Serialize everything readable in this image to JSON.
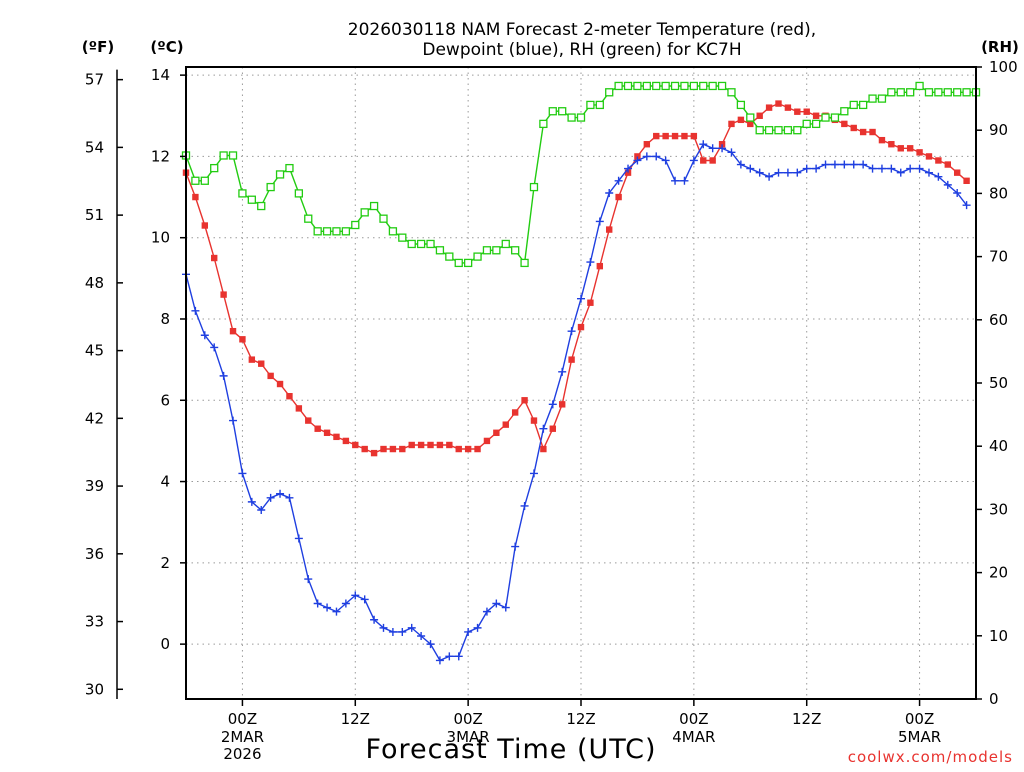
{
  "chart_data": {
    "type": "line",
    "title_lines": [
      "2026030118 NAM Forecast 2-meter Temperature (red),",
      "Dewpoint (blue), RH (green) for KC7H"
    ],
    "xlabel": "Forecast Time (UTC)",
    "watermark": "coolwx.com/models",
    "units": {
      "left_f": "(ºF)",
      "left_c": "(ºC)",
      "right": "(RH)"
    },
    "x_hours_range": [
      -6,
      78
    ],
    "x_tick_hours": [
      0,
      12,
      24,
      36,
      48,
      60,
      72
    ],
    "x_ticks": [
      {
        "label": "00Z",
        "sub": [
          "2MAR",
          "2026"
        ]
      },
      {
        "label": "12Z",
        "sub": []
      },
      {
        "label": "00Z",
        "sub": [
          "3MAR"
        ]
      },
      {
        "label": "12Z",
        "sub": []
      },
      {
        "label": "00Z",
        "sub": [
          "4MAR"
        ]
      },
      {
        "label": "12Z",
        "sub": []
      },
      {
        "label": "00Z",
        "sub": [
          "5MAR"
        ]
      }
    ],
    "y_celsius_range": [
      -1.35,
      14.2
    ],
    "y_celsius_ticks": [
      0,
      2,
      4,
      6,
      8,
      10,
      12,
      14
    ],
    "y_fahrenheit_ticks": [
      30,
      33,
      36,
      39,
      42,
      45,
      48,
      51,
      54,
      57
    ],
    "y_rh_range": [
      0,
      100
    ],
    "y_rh_ticks": [
      0,
      10,
      20,
      30,
      40,
      50,
      60,
      70,
      80,
      90,
      100
    ],
    "hour_step": 1,
    "start_hour": -6,
    "series": [
      {
        "name": "Temperature",
        "unit": "C",
        "color": "#e8332f",
        "marker": "filled-square",
        "values": [
          11.6,
          11.0,
          10.3,
          9.5,
          8.6,
          7.7,
          7.5,
          7.0,
          6.9,
          6.6,
          6.4,
          6.1,
          5.8,
          5.5,
          5.3,
          5.2,
          5.1,
          5.0,
          4.9,
          4.8,
          4.7,
          4.8,
          4.8,
          4.8,
          4.9,
          4.9,
          4.9,
          4.9,
          4.9,
          4.8,
          4.8,
          4.8,
          5.0,
          5.2,
          5.4,
          5.7,
          6.0,
          5.5,
          4.8,
          5.3,
          5.9,
          7.0,
          7.8,
          8.4,
          9.3,
          10.2,
          11.0,
          11.6,
          12.0,
          12.3,
          12.5,
          12.5,
          12.5,
          12.5,
          12.5,
          11.9,
          11.9,
          12.3,
          12.8,
          12.9,
          12.8,
          13.0,
          13.2,
          13.3,
          13.2,
          13.1,
          13.1,
          13.0,
          13.0,
          12.9,
          12.8,
          12.7,
          12.6,
          12.6,
          12.4,
          12.3,
          12.2,
          12.2,
          12.1,
          12.0,
          11.9,
          11.8,
          11.6,
          11.4
        ]
      },
      {
        "name": "Dewpoint",
        "unit": "C",
        "color": "#1f3fe0",
        "marker": "plus",
        "values": [
          9.1,
          8.2,
          7.6,
          7.3,
          6.6,
          5.5,
          4.2,
          3.5,
          3.3,
          3.6,
          3.7,
          3.6,
          2.6,
          1.6,
          1.0,
          0.9,
          0.8,
          1.0,
          1.2,
          1.1,
          0.6,
          0.4,
          0.3,
          0.3,
          0.4,
          0.2,
          0.0,
          -0.4,
          -0.3,
          -0.3,
          0.3,
          0.4,
          0.8,
          1.0,
          0.9,
          2.4,
          3.4,
          4.2,
          5.3,
          5.9,
          6.7,
          7.7,
          8.5,
          9.4,
          10.4,
          11.1,
          11.4,
          11.7,
          11.9,
          12.0,
          12.0,
          11.9,
          11.4,
          11.4,
          11.9,
          12.3,
          12.2,
          12.2,
          12.1,
          11.8,
          11.7,
          11.6,
          11.5,
          11.6,
          11.6,
          11.6,
          11.7,
          11.7,
          11.8,
          11.8,
          11.8,
          11.8,
          11.8,
          11.7,
          11.7,
          11.7,
          11.6,
          11.7,
          11.7,
          11.6,
          11.5,
          11.3,
          11.1,
          10.8
        ]
      },
      {
        "name": "RH",
        "unit": "%",
        "color": "#22cc11",
        "marker": "open-square",
        "values": [
          86,
          82,
          82,
          84,
          86,
          86,
          80,
          79,
          78,
          81,
          83,
          84,
          80,
          76,
          74,
          74,
          74,
          74,
          75,
          77,
          78,
          76,
          74,
          73,
          72,
          72,
          72,
          71,
          70,
          69,
          69,
          70,
          71,
          71,
          72,
          71,
          69,
          81,
          91,
          93,
          93,
          92,
          92,
          94,
          94,
          96,
          97,
          97,
          97,
          97,
          97,
          97,
          97,
          97,
          97,
          97,
          97,
          97,
          96,
          94,
          92,
          90,
          90,
          90,
          90,
          90,
          91,
          91,
          92,
          92,
          93,
          94,
          94,
          95,
          95,
          96,
          96,
          96,
          97,
          96,
          96,
          96,
          96,
          96,
          96
        ]
      }
    ]
  }
}
